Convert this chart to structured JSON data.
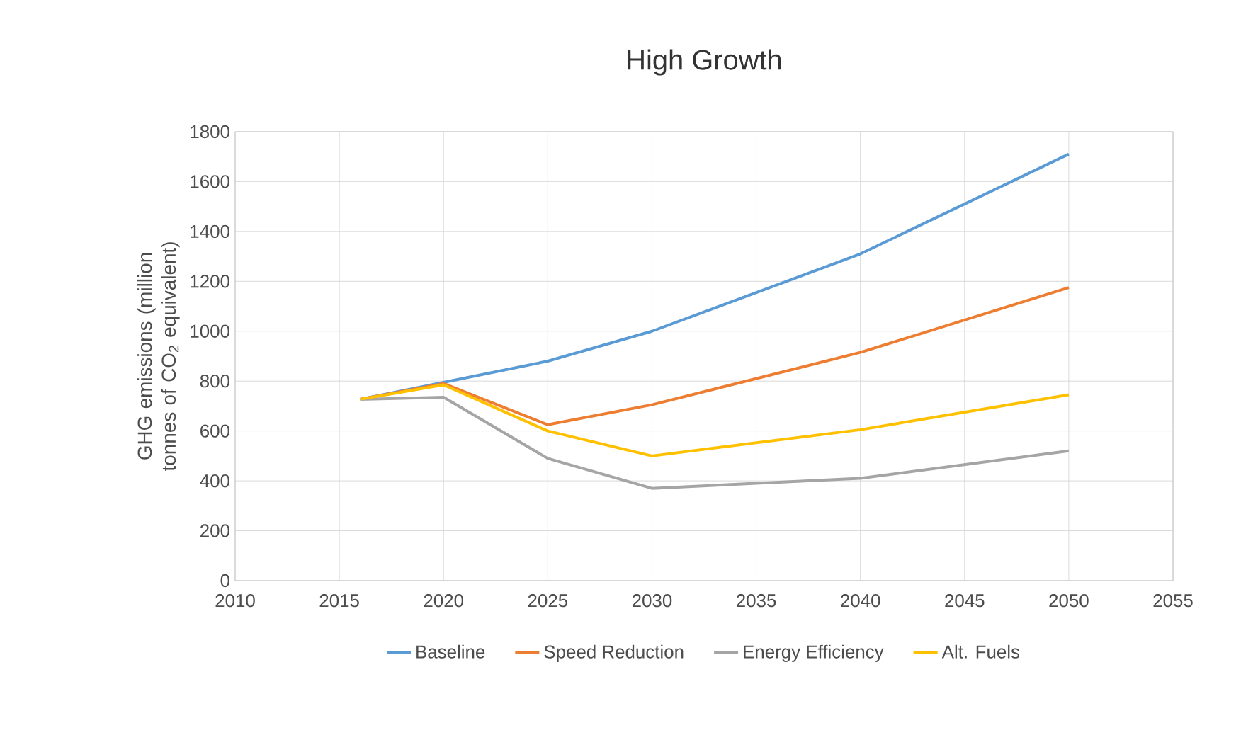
{
  "chart_data": {
    "type": "line",
    "title": "High Growth",
    "ylabel": "GHG emissions (million tonnes of CO$_{2}$ equivalent)",
    "x": [
      2016,
      2020,
      2025,
      2030,
      2040,
      2050
    ],
    "series": [
      {
        "name": "Baseline",
        "color": "#5b9bd5",
        "values": [
          727,
          795,
          880,
          1000,
          1310,
          1710
        ]
      },
      {
        "name": "Speed Reduction",
        "color": "#ed7d31",
        "values": [
          727,
          790,
          625,
          705,
          915,
          1175
        ]
      },
      {
        "name": "Energy Efficiency",
        "color": "#a5a5a5",
        "values": [
          727,
          735,
          490,
          370,
          410,
          520
        ]
      },
      {
        "name": "Alt. Fuels",
        "color": "#ffc000",
        "values": [
          727,
          785,
          600,
          500,
          605,
          745
        ]
      }
    ],
    "xlim": [
      2010,
      2055
    ],
    "xticks": [
      2010,
      2015,
      2020,
      2025,
      2030,
      2035,
      2040,
      2045,
      2050,
      2055
    ],
    "ylim": [
      0,
      1800
    ],
    "yticks": [
      0,
      200,
      400,
      600,
      800,
      1000,
      1200,
      1400,
      1600,
      1800
    ],
    "grid": true,
    "legend": "bottom",
    "marker": "none",
    "line_style": "solid"
  }
}
